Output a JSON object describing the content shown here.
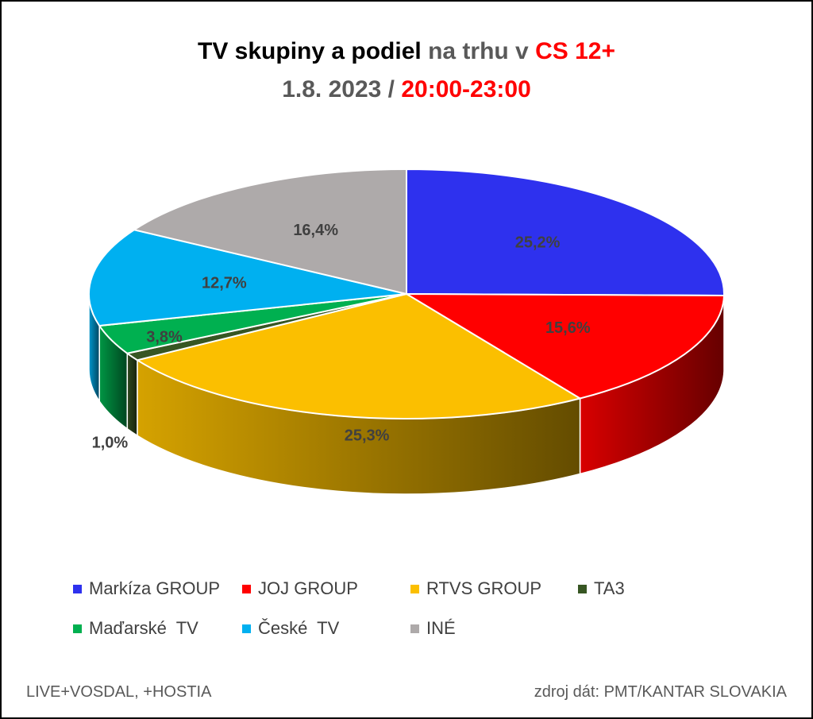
{
  "title": {
    "line1_part1": "TV skupiny a podiel ",
    "line1_part2": "na trhu v ",
    "line1_part3": "CS 12+",
    "line2_part1": "1.8. 2023 / ",
    "line2_part2": "20:00-23:00"
  },
  "chart_data": {
    "type": "pie",
    "style": "3d-exploded-slightly",
    "slices": [
      {
        "name": "Markíza GROUP",
        "value": 25.2,
        "label": "25,2%",
        "color": "#2e31ee"
      },
      {
        "name": "JOJ GROUP",
        "value": 15.6,
        "label": "15,6%",
        "color": "#ff0000"
      },
      {
        "name": "RTVS GROUP",
        "value": 25.3,
        "label": "25,3%",
        "color": "#fbbf00"
      },
      {
        "name": "TA3",
        "value": 1.0,
        "label": "1,0%",
        "color": "#375623"
      },
      {
        "name": "Maďarské  TV",
        "value": 3.8,
        "label": "3,8%",
        "color": "#00b050"
      },
      {
        "name": "České  TV",
        "value": 12.7,
        "label": "12,7%",
        "color": "#00b0f0"
      },
      {
        "name": "INÉ",
        "value": 16.4,
        "label": "16,4%",
        "color": "#aeaaaa"
      }
    ],
    "legend_placement": "bottom"
  },
  "footer": {
    "left": "LIVE+VOSDAL, +HOSTIA",
    "right": "zdroj dát: PMT/KANTAR SLOVAKIA"
  }
}
